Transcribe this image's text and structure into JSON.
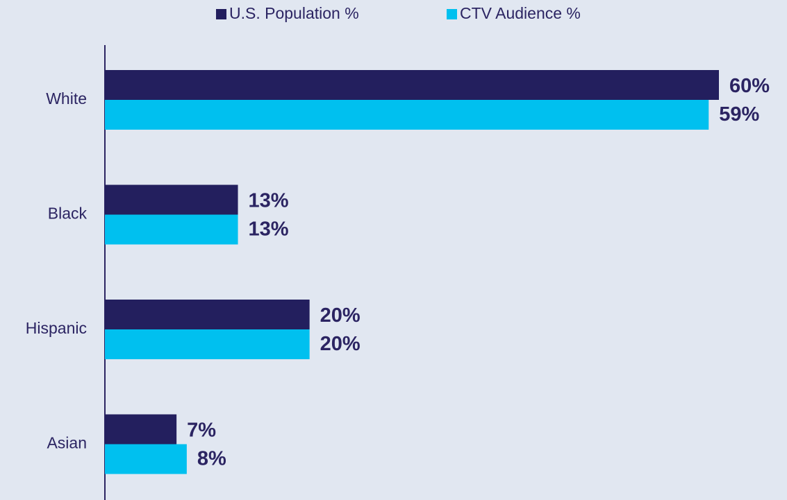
{
  "chart_data": {
    "type": "hbar",
    "categories": [
      "White",
      "Black",
      "Hispanic",
      "Asian"
    ],
    "series": [
      {
        "name": "U.S. Population %",
        "color": "#231f5e",
        "values": [
          60,
          13,
          20,
          7
        ],
        "value_labels": [
          "60%",
          "13%",
          "20%",
          "7%"
        ]
      },
      {
        "name": "CTV Audience %",
        "color": "#00c0ef",
        "values": [
          59,
          13,
          20,
          8
        ],
        "value_labels": [
          "59%",
          "13%",
          "20%",
          "8%"
        ]
      }
    ],
    "xlim": [
      0,
      60
    ],
    "legend": "top"
  }
}
